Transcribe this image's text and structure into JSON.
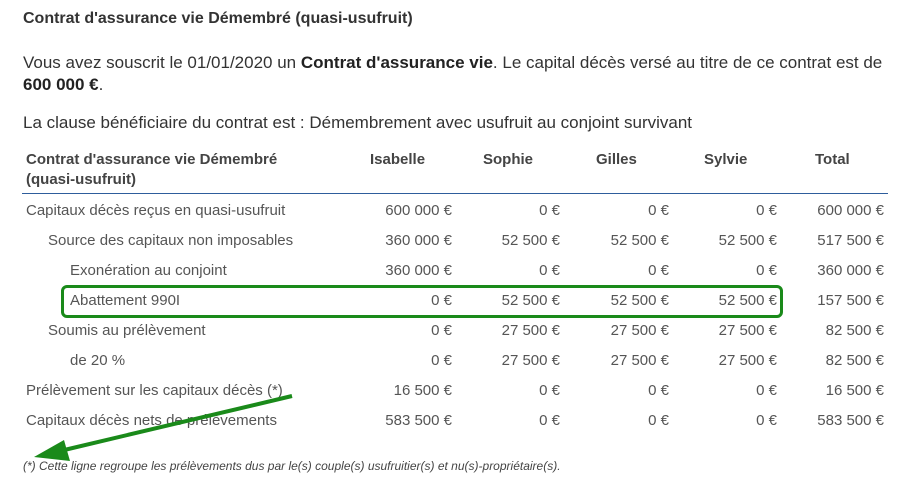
{
  "title": "Contrat d'assurance vie Démembré (quasi-usufruit)",
  "intro": {
    "p1_a": "Vous avez souscrit le 01/01/2020 un ",
    "p1_b": "Contrat d'assurance vie",
    "p1_c": ". Le capital décès versé au titre de ce contrat est de ",
    "p1_d": "600 000 €",
    "p1_e": ".",
    "p2": "La clause bénéficiaire du contrat est : Démembrement avec usufruit au conjoint survivant"
  },
  "table": {
    "headers": [
      "Contrat d'assurance vie Démembré",
      "(quasi-usufruit)",
      "Isabelle",
      "Sophie",
      "Gilles",
      "Sylvie",
      "Total"
    ],
    "rows": [
      {
        "label": "Capitaux décès reçus en quasi-usufruit",
        "values": [
          "600 000 €",
          "0 €",
          "0 €",
          "0 €",
          "600 000 €"
        ]
      },
      {
        "label": "Source des capitaux non imposables",
        "values": [
          "360 000 €",
          "52 500 €",
          "52 500 €",
          "52 500 €",
          "517 500 €"
        ]
      },
      {
        "label": "Exonération au conjoint",
        "values": [
          "360 000 €",
          "0 €",
          "0 €",
          "0 €",
          "360 000 €"
        ]
      },
      {
        "label": "Abattement 990I",
        "values": [
          "0 €",
          "52 500 €",
          "52 500 €",
          "52 500 €",
          "157 500 €"
        ]
      },
      {
        "label": "Soumis au prélèvement",
        "values": [
          "0 €",
          "27 500 €",
          "27 500 €",
          "27 500 €",
          "82 500 €"
        ]
      },
      {
        "label": "de 20 %",
        "values": [
          "0 €",
          "27 500 €",
          "27 500 €",
          "27 500 €",
          "82 500 €"
        ]
      },
      {
        "label": "Prélèvement sur les capitaux décès (*)",
        "values": [
          "16 500 €",
          "0 €",
          "0 €",
          "0 €",
          "16 500 €"
        ]
      },
      {
        "label": "Capitaux décès nets de prélèvements",
        "values": [
          "583 500 €",
          "0 €",
          "0 €",
          "0 €",
          "583 500 €"
        ]
      }
    ]
  },
  "footnote": "(*) Cette ligne regroupe les prélèvements dus par le(s) couple(s) usufruitier(s) et nu(s)-propriétaire(s).",
  "colors": {
    "highlight": "#1a8a1a",
    "header_rule": "#2e5d9c"
  }
}
